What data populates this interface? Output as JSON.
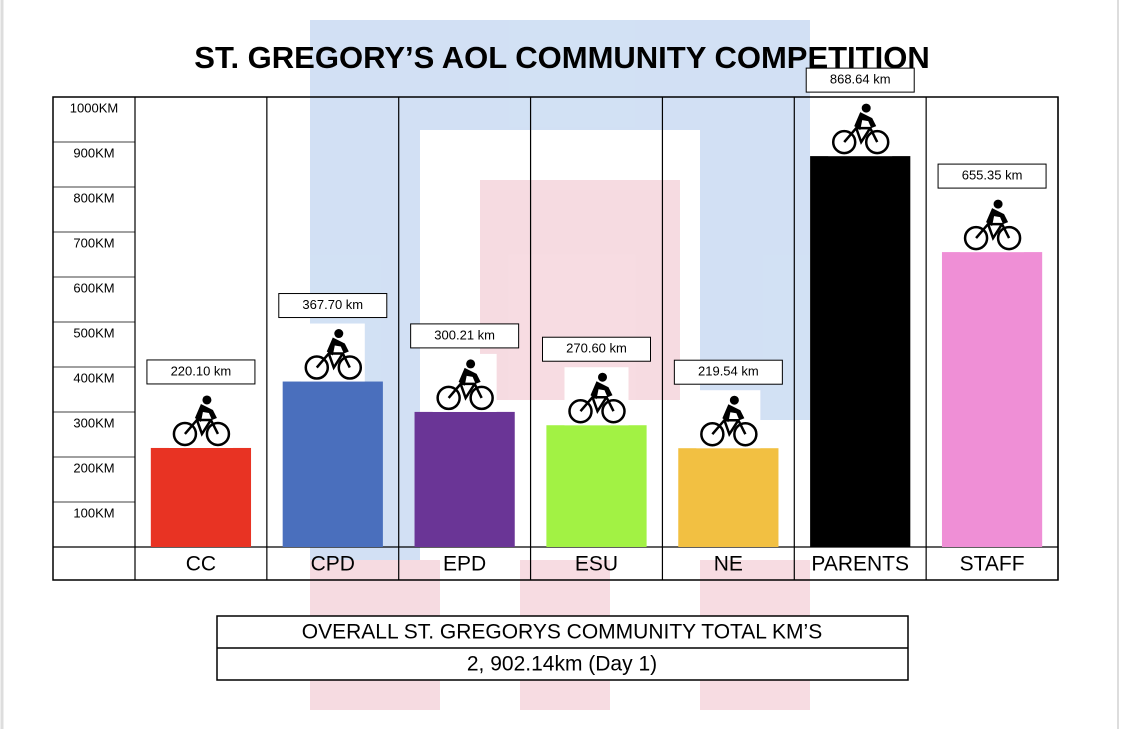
{
  "chart_data": {
    "type": "bar",
    "title": "ST. GREGORY’S AOL COMMUNITY COMPETITION",
    "categories": [
      "CC",
      "CPD",
      "EPD",
      "ESU",
      "NE",
      "PARENTS",
      "STAFF"
    ],
    "values": [
      220.1,
      367.7,
      300.21,
      270.6,
      219.54,
      868.64,
      655.35
    ],
    "value_labels": [
      "220.10 km",
      "367.70 km",
      "300.21 km",
      "270.60 km",
      "219.54 km",
      "868.64 km",
      "655.35 km"
    ],
    "colors": [
      "#e83323",
      "#4a6fbd",
      "#6a3596",
      "#a2f244",
      "#f2c042",
      "#000000",
      "#ef8fd6"
    ],
    "ylim": [
      0,
      1000
    ],
    "yticks": [
      {
        "value": 100,
        "label": "100KM"
      },
      {
        "value": 200,
        "label": "200KM"
      },
      {
        "value": 300,
        "label": "300KM"
      },
      {
        "value": 400,
        "label": "400KM"
      },
      {
        "value": 500,
        "label": "500KM"
      },
      {
        "value": 600,
        "label": "600KM"
      },
      {
        "value": 700,
        "label": "700KM"
      },
      {
        "value": 800,
        "label": "800KM"
      },
      {
        "value": 900,
        "label": "900KM"
      },
      {
        "value": 1000,
        "label": "1000KM"
      }
    ],
    "grid": true
  },
  "summary_table": {
    "rows": [
      "OVERALL ST. GREGORYS COMMUNITY TOTAL KM’S",
      "2, 902.14km (Day 1)"
    ]
  }
}
